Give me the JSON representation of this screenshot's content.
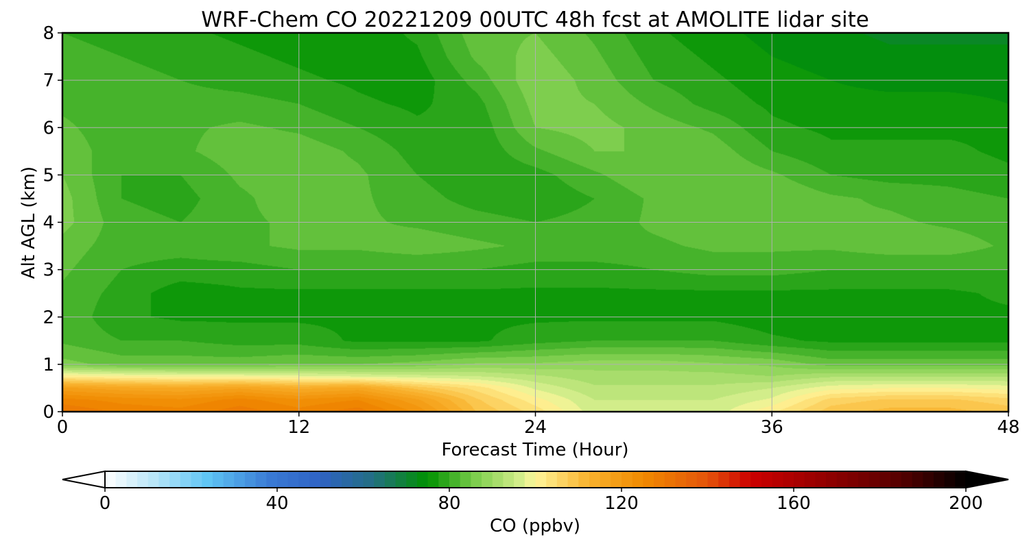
{
  "chart_data": {
    "type": "heatmap",
    "title": "WRF-Chem CO  20221209 00UTC 48h fcst at AMOLITE lidar site",
    "xlabel": "Forecast Time (Hour)",
    "ylabel": "Alt AGL (km)",
    "xlim": [
      0,
      48
    ],
    "ylim": [
      0,
      8
    ],
    "xticks": [
      0,
      12,
      24,
      36,
      48
    ],
    "yticks": [
      0,
      1,
      2,
      3,
      4,
      5,
      6,
      7,
      8
    ],
    "grid": true,
    "colorbar": {
      "label": "CO  (ppbv)",
      "min": 0,
      "max": 200,
      "ticks": [
        0,
        40,
        80,
        120,
        160,
        200
      ],
      "extend": "both",
      "orientation": "horizontal",
      "stops": [
        {
          "value": 0,
          "color": "#ffffff"
        },
        {
          "value": 12,
          "color": "#b4e4f8"
        },
        {
          "value": 24,
          "color": "#5ec4f4"
        },
        {
          "value": 38,
          "color": "#3a7bd5"
        },
        {
          "value": 50,
          "color": "#2f62c4"
        },
        {
          "value": 62,
          "color": "#236e84"
        },
        {
          "value": 75,
          "color": "#009100"
        },
        {
          "value": 86,
          "color": "#7ccd4c"
        },
        {
          "value": 97,
          "color": "#d8ef8e"
        },
        {
          "value": 100,
          "color": "#fff59a"
        },
        {
          "value": 112,
          "color": "#f9b430"
        },
        {
          "value": 125,
          "color": "#f08a00"
        },
        {
          "value": 140,
          "color": "#e4530a"
        },
        {
          "value": 150,
          "color": "#cc0000"
        },
        {
          "value": 165,
          "color": "#9a0000"
        },
        {
          "value": 185,
          "color": "#550000"
        },
        {
          "value": 200,
          "color": "#000000"
        }
      ]
    },
    "time_hours": [
      0,
      3,
      6,
      9,
      12,
      15,
      18,
      21,
      24,
      27,
      30,
      33,
      36,
      39,
      42,
      45,
      48
    ],
    "altitude_km": [
      0,
      0.25,
      0.5,
      0.75,
      1.0,
      1.5,
      2.0,
      2.5,
      3.0,
      3.5,
      4.0,
      4.5,
      5.0,
      5.5,
      6.0,
      6.5,
      7.0,
      7.5,
      8.0
    ],
    "co_ppbv": [
      [
        130,
        127,
        126,
        129,
        126,
        129,
        122,
        110,
        104,
        96,
        96,
        96,
        102,
        109,
        111,
        111,
        109
      ],
      [
        126,
        124,
        123,
        126,
        123,
        125,
        118,
        108,
        101,
        95,
        95,
        95,
        98,
        106,
        108,
        108,
        106
      ],
      [
        118,
        116,
        115,
        117,
        114,
        116,
        109,
        104,
        97,
        93,
        93,
        93,
        95,
        99,
        100,
        100,
        99
      ],
      [
        101,
        100,
        99,
        99,
        98,
        97,
        96,
        95,
        93,
        91,
        91,
        91,
        90,
        92,
        92,
        92,
        92
      ],
      [
        86,
        84,
        84,
        84,
        85,
        85,
        86,
        88,
        88,
        89,
        89,
        88,
        87,
        84,
        84,
        84,
        84
      ],
      [
        82,
        80,
        80,
        79,
        79,
        77,
        77,
        77,
        79,
        80,
        80,
        80,
        78,
        77,
        77,
        77,
        77
      ],
      [
        82,
        78,
        77,
        77,
        77,
        77,
        77,
        77,
        77,
        77,
        77,
        77,
        76,
        76,
        76,
        77,
        77
      ],
      [
        82,
        79,
        76,
        77,
        77,
        77,
        77,
        77,
        77,
        77,
        77,
        77,
        77,
        77,
        77,
        77,
        78
      ],
      [
        83,
        80,
        79,
        79,
        80,
        80,
        80,
        80,
        79,
        79,
        80,
        81,
        81,
        80,
        80,
        80,
        80
      ],
      [
        84,
        81,
        81,
        82,
        83,
        83,
        84,
        83,
        82,
        82,
        82,
        83,
        83,
        83,
        84,
        84,
        82
      ],
      [
        86,
        81,
        80,
        82,
        83,
        83,
        82,
        81,
        80,
        81,
        83,
        84,
        84,
        83,
        83,
        82,
        81
      ],
      [
        86,
        80,
        79,
        82,
        84,
        83,
        81,
        79,
        78,
        80,
        83,
        85,
        85,
        83,
        82,
        81,
        80
      ],
      [
        85,
        80,
        80,
        83,
        84,
        83,
        80,
        78,
        79,
        82,
        85,
        85,
        83,
        80,
        79,
        79,
        78
      ],
      [
        84,
        81,
        82,
        84,
        84,
        82,
        79,
        78,
        82,
        85,
        85,
        84,
        80,
        78,
        78,
        78,
        77
      ],
      [
        83,
        81,
        82,
        83,
        82,
        80,
        78,
        78,
        85,
        86,
        84,
        82,
        78,
        77,
        77,
        77,
        77
      ],
      [
        82,
        81,
        81,
        81,
        80,
        78,
        77,
        79,
        86,
        85,
        82,
        79,
        77,
        76,
        76,
        76,
        75
      ],
      [
        82,
        81,
        80,
        79,
        78,
        77,
        76,
        81,
        87,
        84,
        80,
        78,
        76,
        75,
        74,
        74,
        74
      ],
      [
        81,
        80,
        79,
        78,
        77,
        76,
        77,
        83,
        86,
        83,
        79,
        77,
        75,
        74,
        73,
        73,
        73
      ],
      [
        80,
        79,
        78,
        77,
        76,
        76,
        78,
        84,
        85,
        82,
        78,
        76,
        74,
        73,
        72,
        72,
        72
      ]
    ]
  }
}
